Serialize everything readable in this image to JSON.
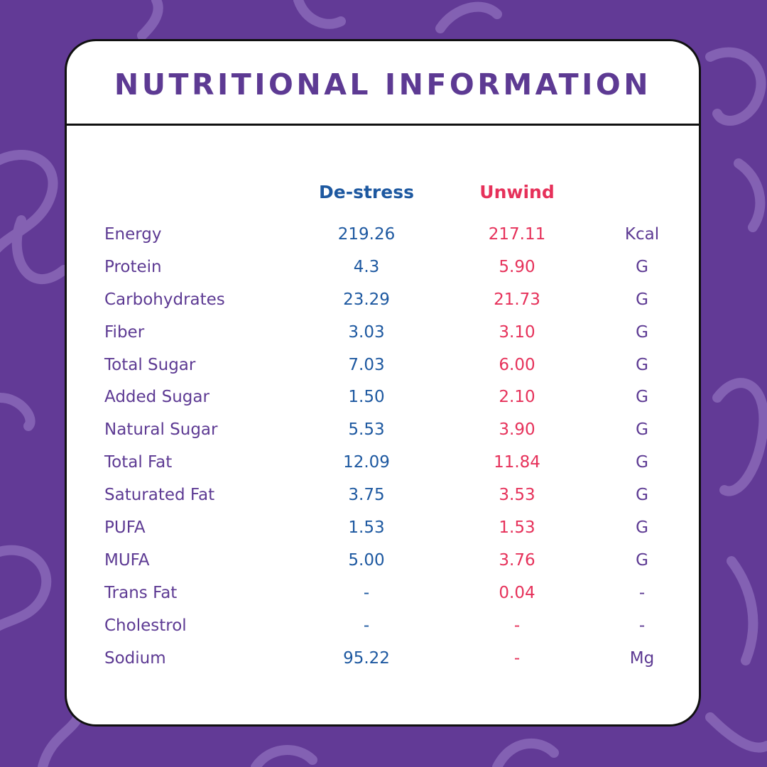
{
  "title": "NUTRITIONAL INFORMATION",
  "columns": {
    "a": "De-stress",
    "b": "Unwind"
  },
  "rows": [
    {
      "label": "Energy",
      "a": "219.26",
      "b": "217.11",
      "unit": "Kcal"
    },
    {
      "label": "Protein",
      "a": "4.3",
      "b": "5.90",
      "unit": "G"
    },
    {
      "label": "Carbohydrates",
      "a": "23.29",
      "b": "21.73",
      "unit": "G"
    },
    {
      "label": "Fiber",
      "a": "3.03",
      "b": "3.10",
      "unit": "G"
    },
    {
      "label": "Total Sugar",
      "a": "7.03",
      "b": "6.00",
      "unit": "G"
    },
    {
      "label": "Added Sugar",
      "a": "1.50",
      "b": "2.10",
      "unit": "G"
    },
    {
      "label": "Natural Sugar",
      "a": "5.53",
      "b": "3.90",
      "unit": "G"
    },
    {
      "label": "Total Fat",
      "a": "12.09",
      "b": "11.84",
      "unit": "G"
    },
    {
      "label": "Saturated Fat",
      "a": "3.75",
      "b": "3.53",
      "unit": "G"
    },
    {
      "label": "PUFA",
      "a": "1.53",
      "b": "1.53",
      "unit": "G"
    },
    {
      "label": "MUFA",
      "a": "5.00",
      "b": "3.76",
      "unit": "G"
    },
    {
      "label": "Trans Fat",
      "a": "-",
      "b": "0.04",
      "unit": "-"
    },
    {
      "label": "Cholestrol",
      "a": "-",
      "b": "-",
      "unit": "-"
    },
    {
      "label": "Sodium",
      "a": "95.22",
      "b": "-",
      "unit": "Mg"
    }
  ],
  "colors": {
    "background": "#623a96",
    "doodle": "#8a68b8",
    "label": "#5d3a93",
    "column_a": "#1d58a0",
    "column_b": "#e6315a"
  }
}
